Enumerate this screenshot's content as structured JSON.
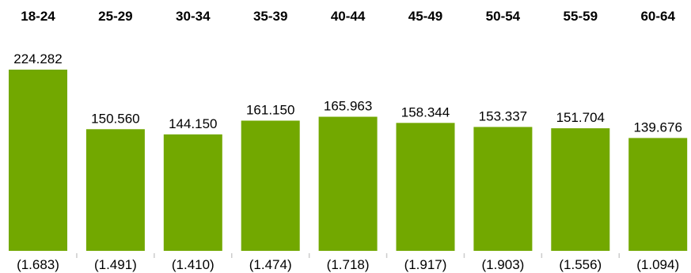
{
  "chart_data": {
    "type": "bar",
    "categories": [
      "18-24",
      "25-29",
      "30-34",
      "35-39",
      "40-44",
      "45-49",
      "50-54",
      "55-59",
      "60-64"
    ],
    "values": [
      224.282,
      150.56,
      144.15,
      161.15,
      165.963,
      158.344,
      153.337,
      151.704,
      139.676
    ],
    "value_labels": [
      "224.282",
      "150.560",
      "144.150",
      "161.150",
      "165.963",
      "158.344",
      "153.337",
      "151.704",
      "139.676"
    ],
    "secondary_labels": [
      "(1.683)",
      "(1.491)",
      "(1.410)",
      "(1.474)",
      "(1.718)",
      "(1.917)",
      "(1.903)",
      "(1.556)",
      "(1.094)"
    ],
    "title": "",
    "xlabel": "",
    "ylabel": "",
    "ylim": [
      0,
      224.282
    ],
    "grid": false,
    "legend": "none",
    "colors": {
      "bar": "#72a800",
      "separator": "#cccccc",
      "text": "#000000"
    }
  }
}
